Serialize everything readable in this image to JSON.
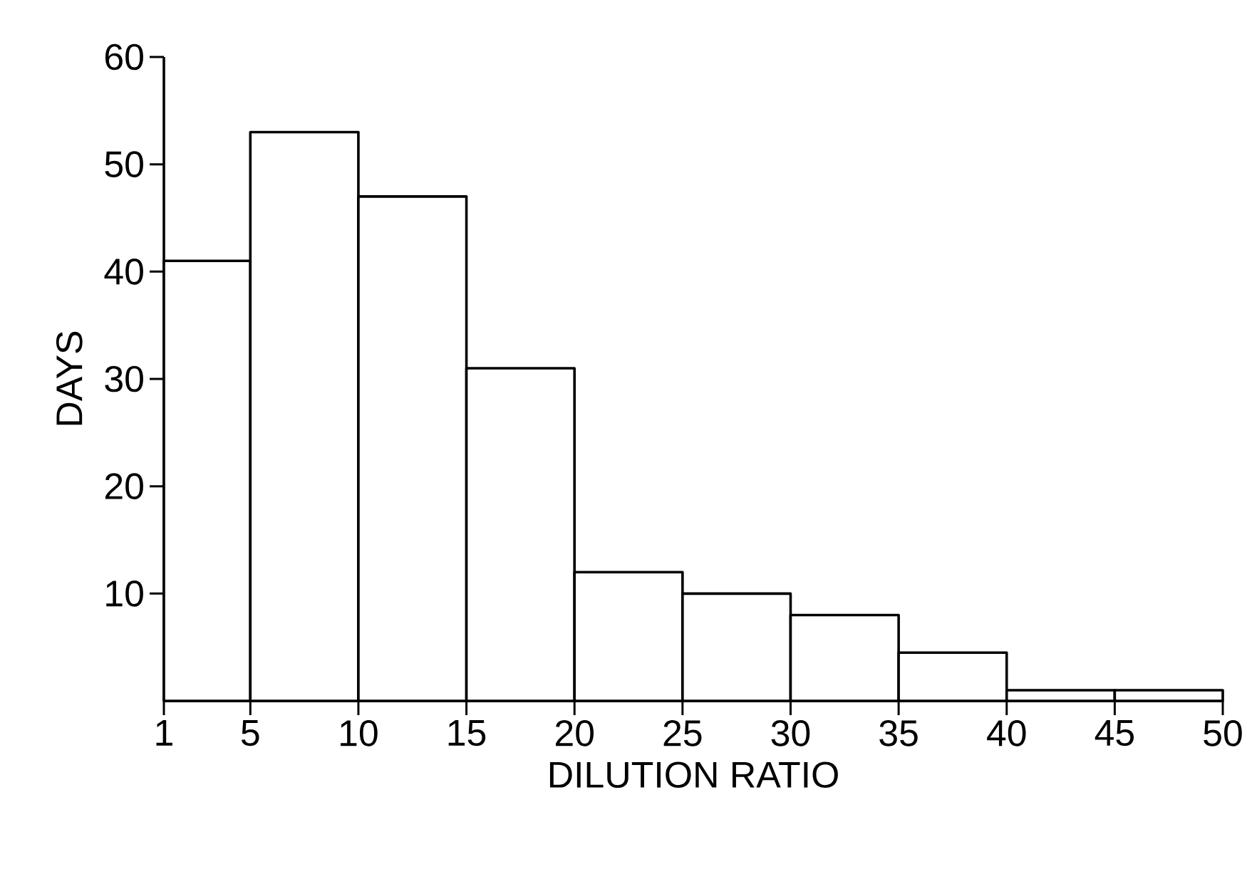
{
  "chart_data": {
    "type": "histogram",
    "xlabel": "DILUTION RATIO",
    "ylabel": "DAYS",
    "bins": [
      1,
      5,
      10,
      15,
      20,
      25,
      30,
      35,
      40,
      45,
      50
    ],
    "values": [
      41,
      53,
      47,
      31,
      12,
      10,
      8,
      4.5,
      1,
      1
    ],
    "color": "#000000",
    "xlim": [
      1,
      50
    ],
    "xticks": [
      1,
      5,
      10,
      15,
      20,
      25,
      30,
      35,
      40,
      45,
      50
    ],
    "ylim": [
      0,
      60
    ],
    "yticks": [
      10,
      20,
      30,
      40,
      50,
      60
    ]
  }
}
